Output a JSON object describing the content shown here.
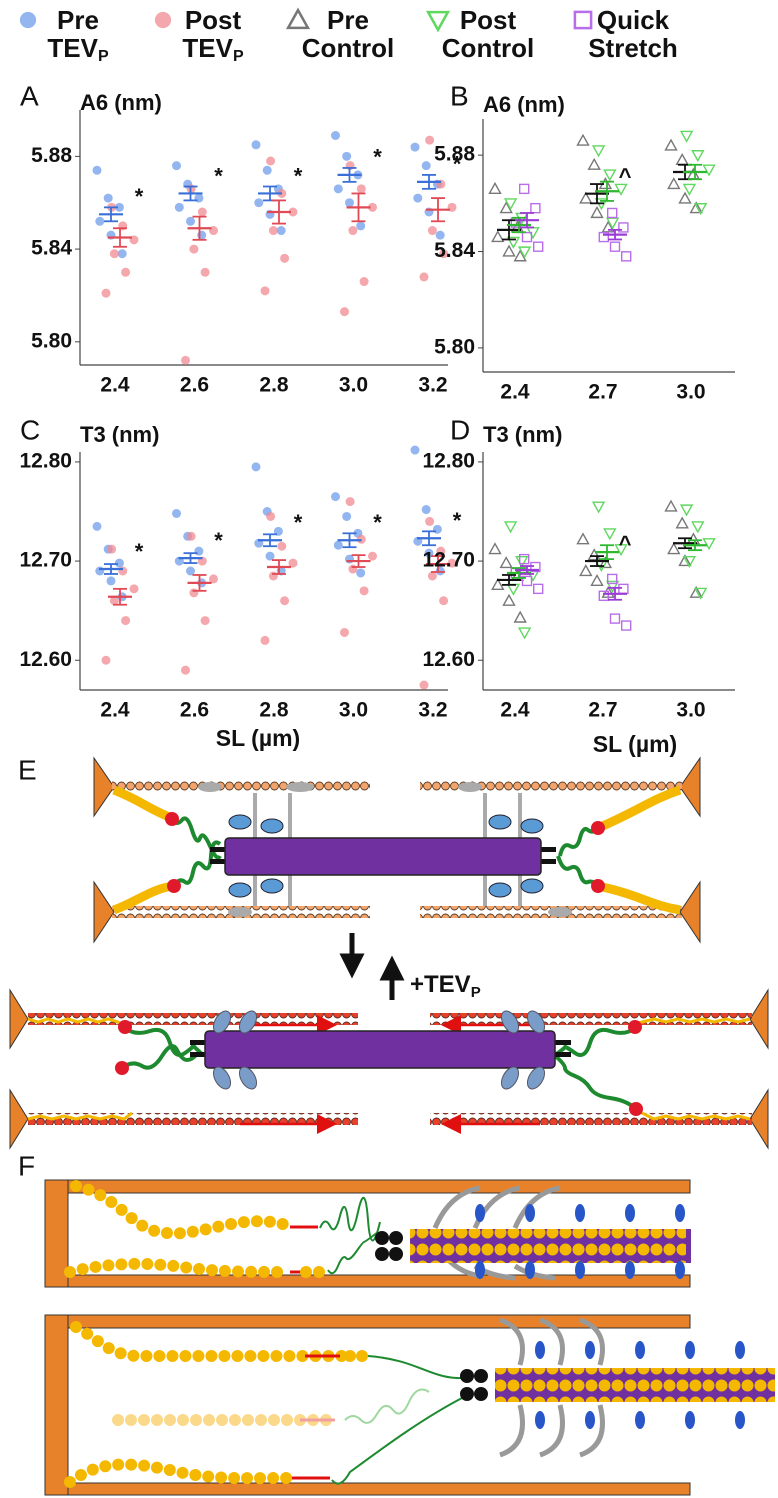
{
  "legend": [
    {
      "line1": "Pre",
      "line2": "TEV",
      "sub": "P",
      "color": "#6f9ceb",
      "marker": "circle"
    },
    {
      "line1": "Post",
      "line2": "TEV",
      "sub": "P",
      "color": "#f08a90",
      "marker": "circle"
    },
    {
      "line1": "Pre",
      "line2": "Control",
      "color": "#777777",
      "marker": "tri-up"
    },
    {
      "line1": "Post",
      "line2": "Control",
      "color": "#5fd85f",
      "marker": "tri-down"
    },
    {
      "line1": "Quick",
      "line2": "Stretch",
      "color": "#b86ee8",
      "marker": "square"
    }
  ],
  "chart_data": [
    {
      "type": "scatter",
      "panel_label": "A",
      "title": "A6 (nm)",
      "categories": [
        "2.4",
        "2.6",
        "2.8",
        "3.0",
        "3.2"
      ],
      "ylim": [
        5.79,
        5.9
      ],
      "yticks": [
        5.88,
        5.84,
        {
          "value": 5.8,
          "label": "5.80"
        }
      ],
      "series": [
        {
          "color": "#6f9ceb",
          "mean_color": "#3a6fd8",
          "marker": "circle",
          "means": [
            5.855,
            5.864,
            5.864,
            5.872,
            5.869
          ],
          "errors": [
            0.003,
            0.003,
            0.003,
            0.003,
            0.003
          ],
          "annotations": [
            "*",
            "*",
            "*",
            "*",
            "*"
          ],
          "points": [
            [
              5.874,
              5.862,
              5.858,
              5.852,
              5.846,
              5.838
            ],
            [
              5.876,
              5.868,
              5.862,
              5.858,
              5.852,
              5.846
            ],
            [
              5.885,
              5.874,
              5.866,
              5.86,
              5.855,
              5.848
            ],
            [
              5.889,
              5.88,
              5.872,
              5.866,
              5.86,
              5.85
            ],
            [
              5.884,
              5.876,
              5.868,
              5.862,
              5.856,
              5.846
            ]
          ]
        },
        {
          "color": "#f08a90",
          "mean_color": "#e04a55",
          "marker": "circle",
          "means": [
            5.845,
            5.849,
            5.856,
            5.858,
            5.857
          ],
          "errors": [
            0.004,
            0.005,
            0.005,
            0.006,
            0.005
          ],
          "points": [
            [
              5.858,
              5.85,
              5.844,
              5.838,
              5.83,
              5.821
            ],
            [
              5.866,
              5.856,
              5.848,
              5.84,
              5.83,
              5.792
            ],
            [
              5.878,
              5.864,
              5.856,
              5.848,
              5.836,
              5.822
            ],
            [
              5.876,
              5.866,
              5.858,
              5.848,
              5.826,
              5.813
            ],
            [
              5.887,
              5.868,
              5.858,
              5.848,
              5.838,
              5.828
            ]
          ]
        }
      ]
    },
    {
      "type": "scatter",
      "panel_label": "B",
      "title": "A6 (nm)",
      "categories": [
        "2.4",
        "2.7",
        "3.0"
      ],
      "ylim": [
        5.79,
        5.895
      ],
      "yticks": [
        5.88,
        5.84,
        {
          "value": 5.8,
          "label": "5.80"
        }
      ],
      "series": [
        {
          "color": "#777777",
          "mean_color": "#111111",
          "marker": "tri-up",
          "means": [
            5.849,
            5.864,
            5.873
          ],
          "errors": [
            0.004,
            0.004,
            0.003
          ],
          "annotations": [
            null,
            "^",
            null
          ],
          "points": [
            [
              5.866,
              5.858,
              5.85,
              5.846,
              5.84,
              5.838
            ],
            [
              5.886,
              5.876,
              5.868,
              5.862,
              5.856,
              5.85
            ],
            [
              5.884,
              5.878,
              5.872,
              5.868,
              5.862,
              5.858
            ]
          ]
        },
        {
          "color": "#5fd85f",
          "mean_color": "#2fb82f",
          "marker": "tri-down",
          "means": [
            5.851,
            5.865,
            5.873
          ],
          "errors": [
            0.003,
            0.004,
            0.003
          ],
          "points": [
            [
              5.86,
              5.854,
              5.848,
              5.844,
              5.84
            ],
            [
              5.882,
              5.872,
              5.866,
              5.86,
              5.852
            ],
            [
              5.888,
              5.88,
              5.874,
              5.866,
              5.858
            ]
          ]
        },
        {
          "color": "#b86ee8",
          "mean_color": "#9b3bd6",
          "marker": "square",
          "means": [
            5.853,
            5.847,
            null
          ],
          "errors": [
            0.003,
            0.002,
            null
          ],
          "points": [
            [
              5.866,
              5.858,
              5.852,
              5.846,
              5.842
            ],
            [
              5.856,
              5.85,
              5.846,
              5.842,
              5.838
            ],
            []
          ]
        }
      ]
    },
    {
      "type": "scatter",
      "panel_label": "C",
      "title": "T3 (nm)",
      "xlabel": "SL (µm)",
      "categories": [
        "2.4",
        "2.6",
        "2.8",
        "3.0",
        "3.2"
      ],
      "ylim": [
        12.57,
        12.81
      ],
      "yticks": [
        {
          "value": 12.8,
          "label": "12.80"
        },
        {
          "value": 12.7,
          "label": "12.70"
        },
        {
          "value": 12.6,
          "label": "12.60"
        }
      ],
      "series": [
        {
          "color": "#6f9ceb",
          "mean_color": "#3a6fd8",
          "marker": "circle",
          "means": [
            12.692,
            12.703,
            12.721,
            12.721,
            12.723
          ],
          "errors": [
            0.005,
            0.005,
            0.006,
            0.007,
            0.007
          ],
          "annotations": [
            "*",
            "*",
            "*",
            "*",
            "*"
          ],
          "points": [
            [
              12.735,
              12.712,
              12.698,
              12.69,
              12.68,
              12.664
            ],
            [
              12.748,
              12.725,
              12.71,
              12.7,
              12.69,
              12.678
            ],
            [
              12.795,
              12.75,
              12.73,
              12.718,
              12.705,
              12.69
            ],
            [
              12.765,
              12.745,
              12.728,
              12.716,
              12.702,
              12.688
            ],
            [
              12.812,
              12.752,
              12.732,
              12.72,
              12.708,
              12.69
            ]
          ]
        },
        {
          "color": "#f08a90",
          "mean_color": "#e04a55",
          "marker": "circle",
          "means": [
            12.664,
            12.678,
            12.694,
            12.7,
            12.697
          ],
          "errors": [
            0.008,
            0.008,
            0.007,
            0.006,
            0.008
          ],
          "points": [
            [
              12.712,
              12.69,
              12.672,
              12.66,
              12.64,
              12.6
            ],
            [
              12.725,
              12.7,
              12.682,
              12.668,
              12.64,
              12.59
            ],
            [
              12.745,
              12.715,
              12.698,
              12.685,
              12.66,
              12.62
            ],
            [
              12.76,
              12.722,
              12.705,
              12.692,
              12.67,
              12.628
            ],
            [
              12.74,
              12.71,
              12.698,
              12.685,
              12.66,
              12.575
            ]
          ]
        }
      ]
    },
    {
      "type": "scatter",
      "panel_label": "D",
      "title": "T3 (nm)",
      "xlabel": "SL (µm)",
      "categories": [
        "2.4",
        "2.7",
        "3.0"
      ],
      "ylim": [
        12.57,
        12.81
      ],
      "yticks": [
        {
          "value": 12.8,
          "label": "12.80"
        },
        {
          "value": 12.7,
          "label": "12.70"
        },
        {
          "value": 12.6,
          "label": "12.60"
        }
      ],
      "series": [
        {
          "color": "#777777",
          "mean_color": "#111111",
          "marker": "tri-up",
          "means": [
            12.681,
            12.7,
            12.718
          ],
          "errors": [
            0.005,
            0.005,
            0.005
          ],
          "annotations": [
            null,
            "^",
            null
          ],
          "points": [
            [
              12.712,
              12.698,
              12.685,
              12.676,
              12.66,
              12.643
            ],
            [
              12.722,
              12.706,
              12.698,
              12.69,
              12.68,
              12.668
            ],
            [
              12.755,
              12.738,
              12.722,
              12.712,
              12.7,
              12.668
            ]
          ]
        },
        {
          "color": "#5fd85f",
          "mean_color": "#2fb82f",
          "marker": "tri-down",
          "means": [
            12.688,
            12.709,
            12.716
          ],
          "errors": [
            0.005,
            0.007,
            0.005
          ],
          "points": [
            [
              12.735,
              12.7,
              12.686,
              12.672,
              12.628
            ],
            [
              12.755,
              12.728,
              12.712,
              12.696,
              12.675
            ],
            [
              12.752,
              12.735,
              12.718,
              12.7,
              12.668
            ]
          ]
        },
        {
          "color": "#b86ee8",
          "mean_color": "#9b3bd6",
          "marker": "square",
          "means": [
            12.691,
            12.667,
            null
          ],
          "errors": [
            0.004,
            0.006,
            null
          ],
          "points": [
            [
              12.702,
              12.694,
              12.688,
              12.68,
              12.672
            ],
            [
              12.682,
              12.672,
              12.665,
              12.642,
              12.635
            ],
            []
          ]
        }
      ]
    }
  ],
  "diagram": {
    "panel_e": "E",
    "panel_f": "F",
    "treatment": "+TEV",
    "treatment_sub": "P"
  }
}
